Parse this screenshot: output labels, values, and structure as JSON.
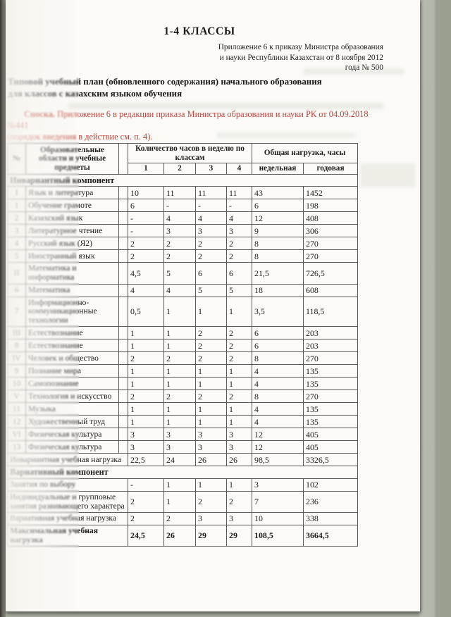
{
  "colors": {
    "paper": "#fbfaf6",
    "background": "#aeb2a4",
    "footnote_red": "#c0443e",
    "ink": "#1c1c1c"
  },
  "page": {
    "title": "1-4 КЛАССЫ",
    "appendix_note": {
      "lines": [
        "Приложение 6 к приказу Министра образования",
        "и науки Республики Казахстан от 8 ноября 2012",
        "года № 500"
      ]
    },
    "heading": {
      "line1": "Типовой учебный план (обновленного содержания) начального образования",
      "line2": "для классов с  казахским языком обучения"
    },
    "footnote": {
      "label": "Сноска.",
      "line1": "Приложение 6 в редакции приказа Министра образования и науки РК от 04.09.2018 №441",
      "line2": "(порядок введения в действие см. п. 4)."
    }
  },
  "table": {
    "header": {
      "num": "№",
      "subject": "Образовательные области и учебные предметы",
      "hours_group": "Количество часов в неделю по классам",
      "load_group": "Общая нагрузка, часы",
      "classes": [
        "1",
        "2",
        "3",
        "4"
      ],
      "weekly": "недельная",
      "yearly": "годовая"
    },
    "rows": [
      {
        "type": "section",
        "label": "Инвариантный компонент"
      },
      {
        "type": "data",
        "num": "I",
        "subject": "Язык и литература",
        "values": [
          "10",
          "11",
          "11",
          "11",
          "43",
          "1452"
        ]
      },
      {
        "type": "data",
        "num": "1",
        "subject": "Обучение грамоте",
        "values": [
          "6",
          "-",
          "-",
          "-",
          "6",
          "198"
        ]
      },
      {
        "type": "data",
        "num": "2",
        "subject": "Казахский язык",
        "values": [
          "-",
          "4",
          "4",
          "4",
          "12",
          "408"
        ]
      },
      {
        "type": "data",
        "num": "3",
        "subject": "Литературное чтение",
        "values": [
          "-",
          "3",
          "3",
          "3",
          "9",
          "306"
        ]
      },
      {
        "type": "data",
        "num": "4",
        "subject": "Русский язык (Я2)",
        "values": [
          "2",
          "2",
          "2",
          "2",
          "8",
          "270"
        ]
      },
      {
        "type": "data",
        "num": "5",
        "subject": "Иностранный язык",
        "values": [
          "2",
          "2",
          "2",
          "2",
          "8",
          "270"
        ]
      },
      {
        "type": "data",
        "num": "II",
        "subject": "Математика и информатика",
        "values": [
          "4,5",
          "5",
          "6",
          "6",
          "21,5",
          "726,5"
        ]
      },
      {
        "type": "data",
        "num": "6",
        "subject": "Математика",
        "values": [
          "4",
          "4",
          "5",
          "5",
          "18",
          "608"
        ]
      },
      {
        "type": "data",
        "num": "7",
        "subject": "Информационно-коммуникационные технологии",
        "values": [
          "0,5",
          "1",
          "1",
          "1",
          "3,5",
          "118,5"
        ]
      },
      {
        "type": "data",
        "num": "III",
        "subject": "Естествознание",
        "values": [
          "1",
          "1",
          "2",
          "2",
          "6",
          "203"
        ]
      },
      {
        "type": "data",
        "num": "8",
        "subject": "Естествознание",
        "values": [
          "1",
          "1",
          "2",
          "2",
          "6",
          "203"
        ]
      },
      {
        "type": "data",
        "num": "IV",
        "subject": "Человек и общество",
        "values": [
          "2",
          "2",
          "2",
          "2",
          "8",
          "270"
        ]
      },
      {
        "type": "data",
        "num": "9",
        "subject": "Познание мира",
        "values": [
          "1",
          "1",
          "1",
          "1",
          "4",
          "135"
        ]
      },
      {
        "type": "data",
        "num": "10",
        "subject": "Самопознание",
        "values": [
          "1",
          "1",
          "1",
          "1",
          "4",
          "135"
        ]
      },
      {
        "type": "data",
        "num": "V",
        "subject": "Технология и искусство",
        "values": [
          "2",
          "2",
          "2",
          "2",
          "8",
          "270"
        ]
      },
      {
        "type": "data",
        "num": "11",
        "subject": "Музыка",
        "values": [
          "1",
          "1",
          "1",
          "1",
          "4",
          "135"
        ]
      },
      {
        "type": "data",
        "num": "12",
        "subject": "Художественный труд",
        "values": [
          "1",
          "1",
          "1",
          "1",
          "4",
          "135"
        ]
      },
      {
        "type": "data",
        "num": "VI",
        "subject": "Физическая культура",
        "values": [
          "3",
          "3",
          "3",
          "3",
          "12",
          "405"
        ]
      },
      {
        "type": "data",
        "num": "13",
        "subject": "Физическая культура",
        "values": [
          "3",
          "3",
          "3",
          "3",
          "12",
          "405"
        ]
      },
      {
        "type": "span",
        "label": "Инвариантная учебная нагрузка",
        "values": [
          "22,5",
          "24",
          "26",
          "26",
          "98,5",
          "3326,5"
        ]
      },
      {
        "type": "section",
        "label": "Вариативный компонент"
      },
      {
        "type": "span",
        "label": "Занятия по выбору",
        "values": [
          "-",
          "1",
          "1",
          "1",
          "3",
          "102"
        ]
      },
      {
        "type": "span",
        "label": "Индивидуальные и групповые занятия развивающего характера",
        "values": [
          "2",
          "1",
          "2",
          "2",
          "7",
          "236"
        ]
      },
      {
        "type": "span",
        "label": "Вариативная учебная нагрузка",
        "values": [
          "2",
          "2",
          "3",
          "3",
          "10",
          "338"
        ]
      },
      {
        "type": "span",
        "label": "Максимальная учебная нагрузка",
        "values": [
          "24,5",
          "26",
          "29",
          "29",
          "108,5",
          "3664,5"
        ],
        "bold": true
      }
    ]
  }
}
